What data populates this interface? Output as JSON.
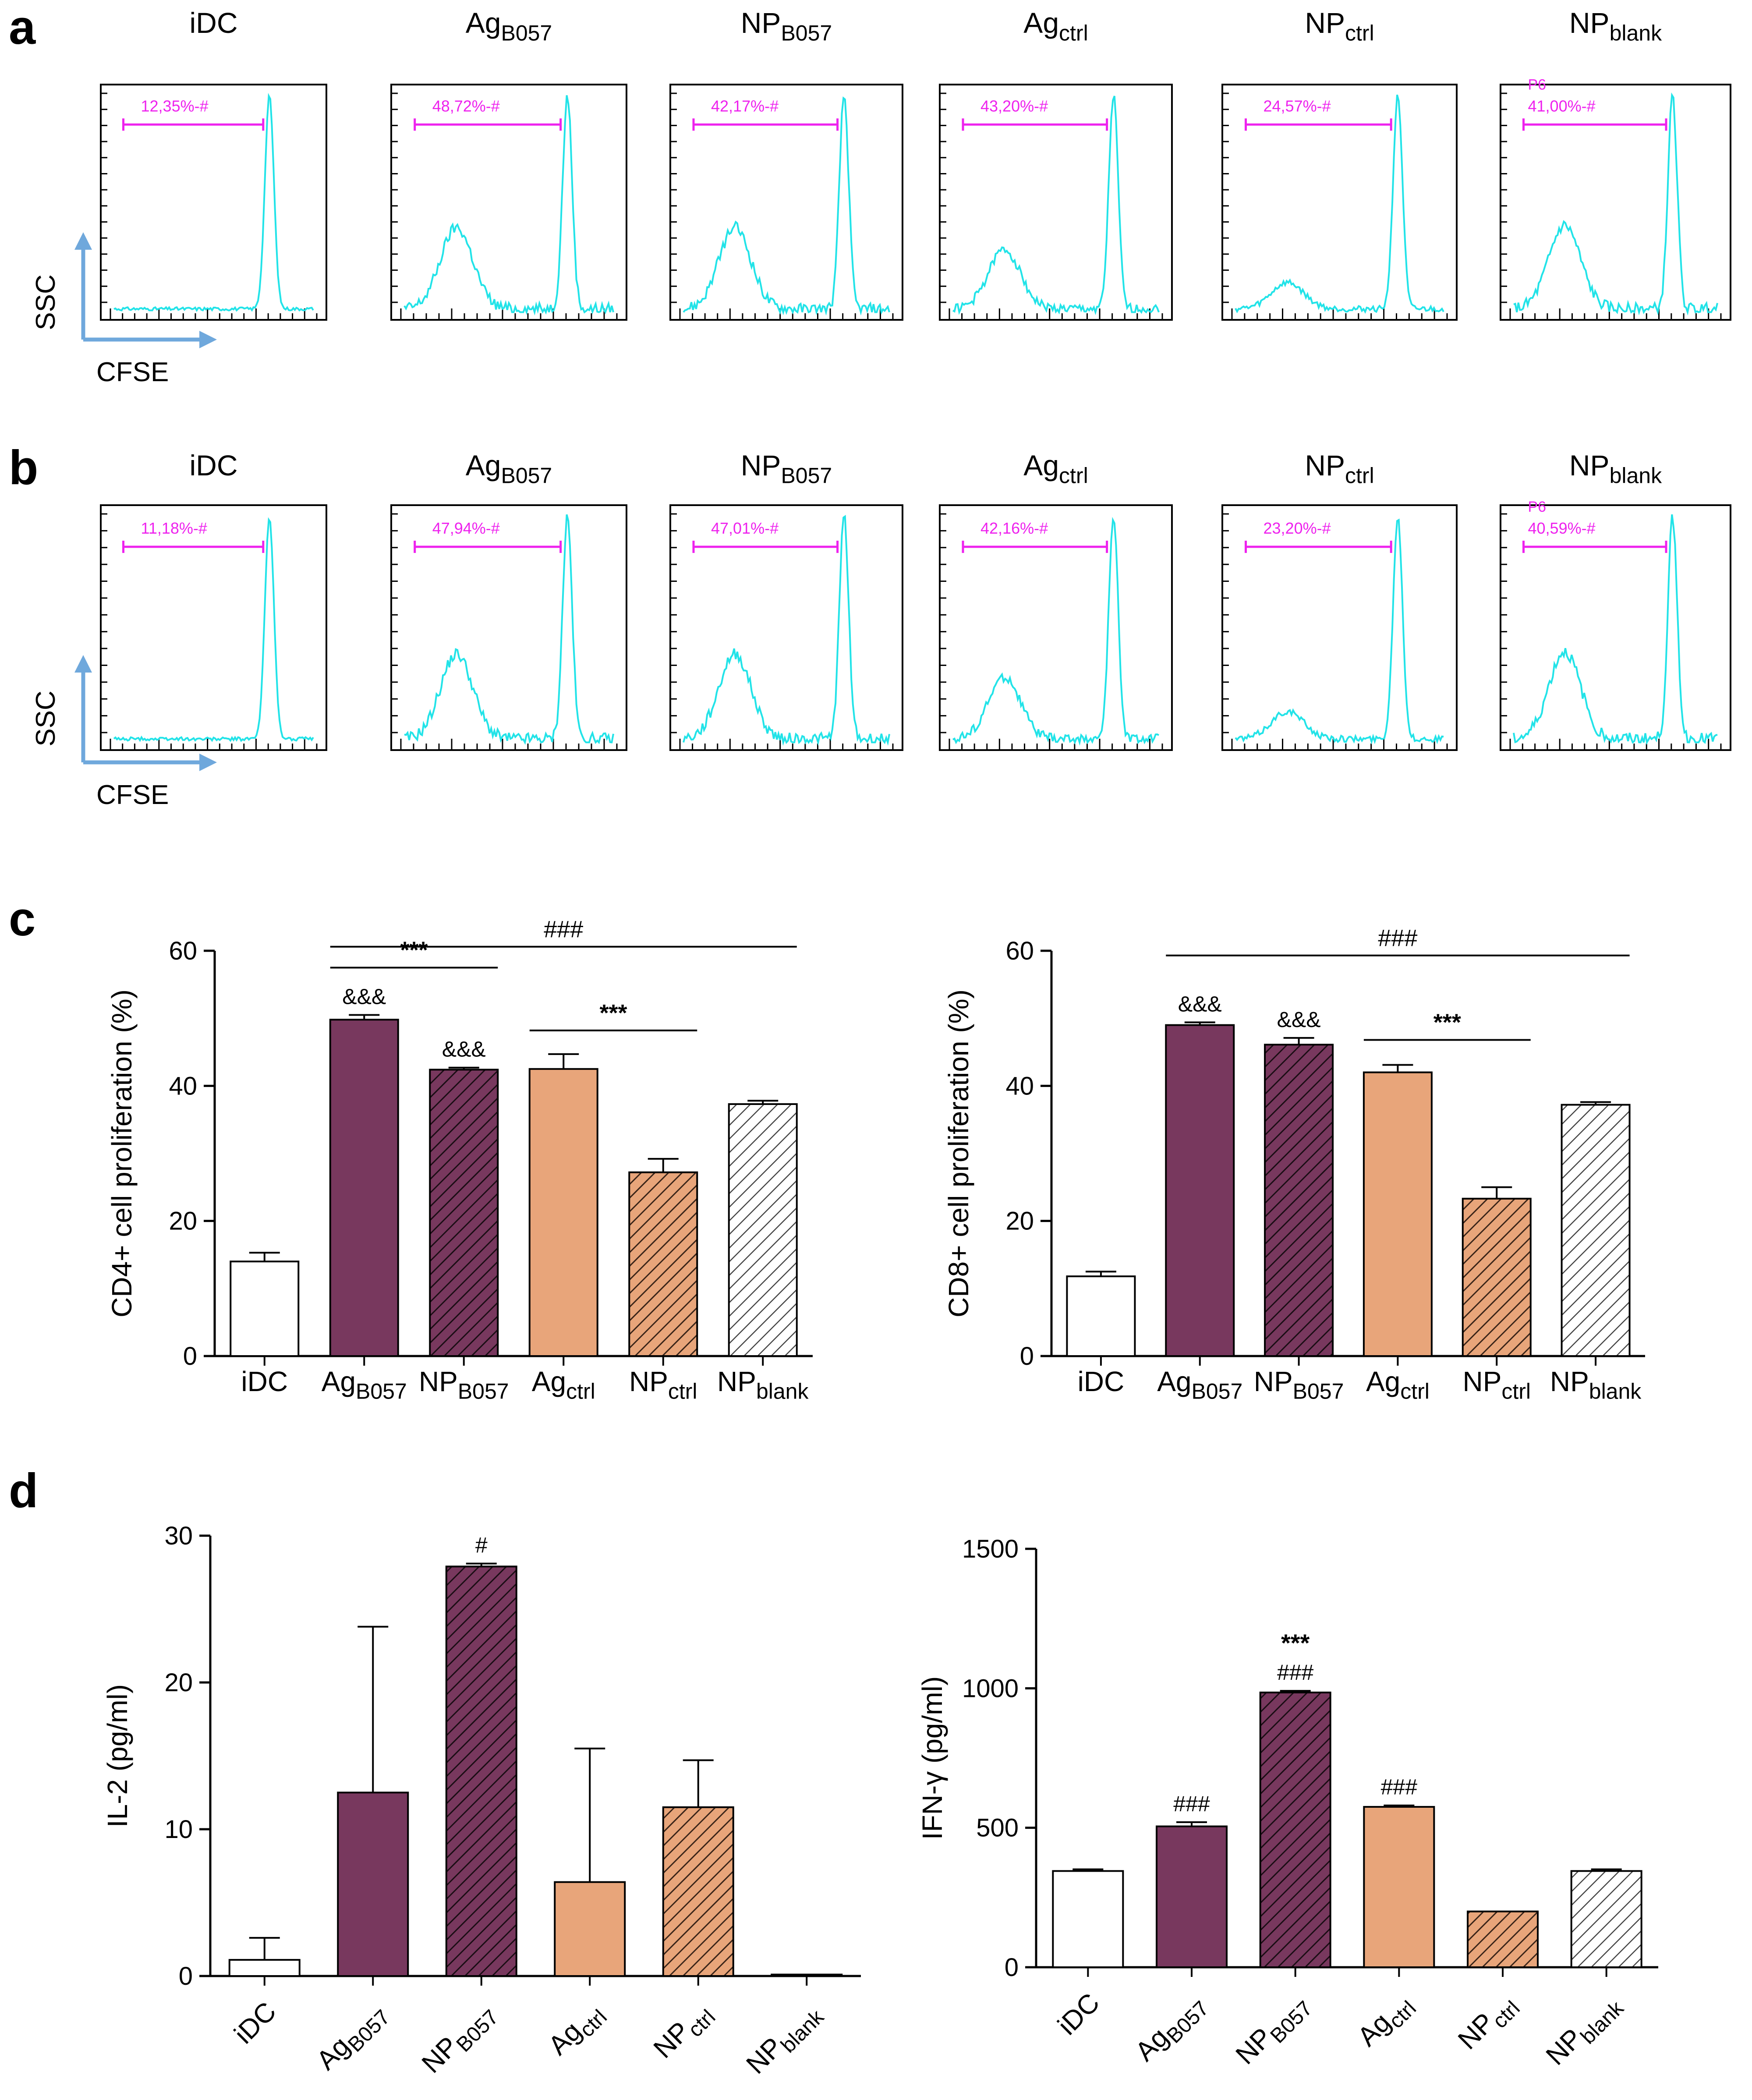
{
  "colors": {
    "histogram": "#22e3e8",
    "gate": "#ee22ee",
    "axis_arrow": "#6fa8dc",
    "ag_b057": "#78385e",
    "ag_ctrl": "#e8a57a",
    "white": "#ffffff",
    "blank_hatch": "#555555"
  },
  "groups": [
    {
      "id": "idc",
      "main": "iDC",
      "sub": "",
      "fill": "white",
      "hatch": false
    },
    {
      "id": "ag_b057",
      "main": "Ag",
      "sub": "B057",
      "fill": "ag_b057",
      "hatch": false
    },
    {
      "id": "np_b057",
      "main": "NP",
      "sub": "B057",
      "fill": "ag_b057",
      "hatch": true
    },
    {
      "id": "ag_ctrl",
      "main": "Ag",
      "sub": "ctrl",
      "fill": "ag_ctrl",
      "hatch": false
    },
    {
      "id": "np_ctrl",
      "main": "NP",
      "sub": "ctrl",
      "fill": "ag_ctrl",
      "hatch": true
    },
    {
      "id": "np_blank",
      "main": "NP",
      "sub": "blank",
      "fill": "white",
      "hatch": true
    }
  ],
  "panels": {
    "a": {
      "letter": "a",
      "axis_y": "SSC",
      "axis_x": "CFSE",
      "gates": [
        {
          "label": "12,35%-#",
          "extra": ""
        },
        {
          "label": "48,72%-#",
          "extra": ""
        },
        {
          "label": "42,17%-#",
          "extra": ""
        },
        {
          "label": "43,20%-#",
          "extra": ""
        },
        {
          "label": "24,57%-#",
          "extra": ""
        },
        {
          "label": "41,00%-#",
          "extra": "P6"
        }
      ]
    },
    "b": {
      "letter": "b",
      "axis_y": "SSC",
      "axis_x": "CFSE",
      "gates": [
        {
          "label": "11,18%-#",
          "extra": ""
        },
        {
          "label": "47,94%-#",
          "extra": ""
        },
        {
          "label": "47,01%-#",
          "extra": ""
        },
        {
          "label": "42,16%-#",
          "extra": ""
        },
        {
          "label": "23,20%-#",
          "extra": ""
        },
        {
          "label": "40,59%-#",
          "extra": "P6"
        }
      ]
    },
    "c": {
      "letter": "c"
    },
    "d": {
      "letter": "d"
    }
  },
  "chart_data": [
    {
      "id": "c_left",
      "type": "bar",
      "ylabel": "CD4+ cell proliferation (%)",
      "categories": [
        "iDC",
        "AgB057",
        "NPB057",
        "Agctrl",
        "NPctrl",
        "NPblank"
      ],
      "values": [
        14,
        49.8,
        42.4,
        42.5,
        27.2,
        37.3
      ],
      "errors": [
        1.3,
        0.7,
        0.3,
        2.2,
        2.0,
        0.5
      ],
      "ylim": [
        0,
        60
      ],
      "yticks": [
        0,
        20,
        40,
        60
      ],
      "bar_labels": [
        "",
        "&&&",
        "&&&",
        "",
        "",
        ""
      ],
      "brackets": [
        {
          "from": 1,
          "to": 5,
          "y": 60.6,
          "label": "###"
        },
        {
          "from": 1,
          "to": 2,
          "y": 57.5,
          "label": "***"
        },
        {
          "from": 3,
          "to": 4,
          "y": 48.2,
          "label": "***"
        }
      ]
    },
    {
      "id": "c_right",
      "type": "bar",
      "ylabel": "CD8+ cell proliferation (%)",
      "categories": [
        "iDC",
        "AgB057",
        "NPB057",
        "Agctrl",
        "NPctrl",
        "NPblank"
      ],
      "values": [
        11.8,
        49.0,
        46.1,
        42.0,
        23.3,
        37.2
      ],
      "errors": [
        0.7,
        0.4,
        1.0,
        1.1,
        1.7,
        0.4
      ],
      "ylim": [
        0,
        60
      ],
      "yticks": [
        0,
        20,
        40,
        60
      ],
      "bar_labels": [
        "",
        "&&&",
        "&&&",
        "",
        "",
        ""
      ],
      "brackets": [
        {
          "from": 1,
          "to": 5,
          "y": 59.3,
          "label": "###"
        },
        {
          "from": 3,
          "to": 4,
          "y": 46.8,
          "label": "***"
        }
      ]
    },
    {
      "id": "d_left",
      "type": "bar",
      "ylabel": "IL-2 (pg/ml)",
      "categories": [
        "iDC",
        "AgB057",
        "NPB057",
        "Agctrl",
        "NPctrl",
        "NPblank"
      ],
      "values": [
        1.1,
        12.5,
        27.9,
        6.4,
        11.5,
        0.1
      ],
      "errors": [
        1.5,
        11.3,
        0.2,
        9.1,
        3.2,
        0
      ],
      "ylim": [
        0,
        30
      ],
      "yticks": [
        0,
        10,
        20,
        30
      ],
      "bar_labels": [
        "",
        "",
        "#",
        "",
        "",
        ""
      ],
      "brackets": []
    },
    {
      "id": "d_right",
      "type": "bar",
      "ylabel": "IFN-γ (pg/ml)",
      "categories": [
        "iDC",
        "AgB057",
        "NPB057",
        "Agctrl",
        "NPctrl",
        "NPblank"
      ],
      "values": [
        345,
        505,
        985,
        575,
        200,
        345
      ],
      "errors": [
        6,
        15,
        6,
        5,
        0,
        6
      ],
      "ylim": [
        0,
        1500
      ],
      "yticks": [
        0,
        500,
        1000,
        1500
      ],
      "bar_labels": [
        "",
        "###",
        "###",
        "###",
        "",
        ""
      ],
      "bar_labels_top": [
        "",
        "",
        "***",
        "",
        "",
        ""
      ],
      "brackets": []
    }
  ]
}
